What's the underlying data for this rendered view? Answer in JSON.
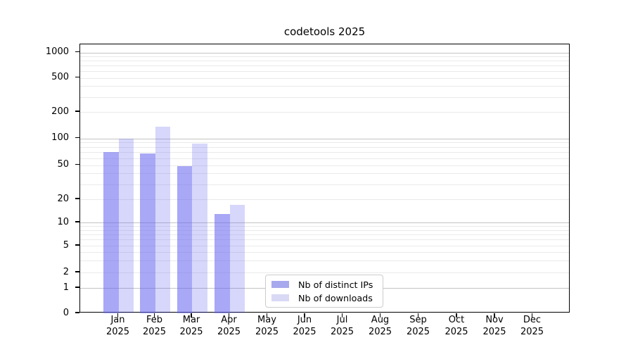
{
  "title": "codetools 2025",
  "legend": {
    "items": [
      {
        "label": "Nb of distinct IPs"
      },
      {
        "label": "Nb of downloads"
      }
    ]
  },
  "axes": {
    "y_tick_labels": [
      "0",
      "1",
      "2",
      "5",
      "10",
      "20",
      "50",
      "100",
      "200",
      "500",
      "1000"
    ],
    "x_tick_labels": [
      "Jan",
      "Feb",
      "Mar",
      "Apr",
      "May",
      "Jun",
      "Jul",
      "Aug",
      "Sep",
      "Oct",
      "Nov",
      "Dec"
    ],
    "x_year": "2025"
  },
  "chart_data": {
    "type": "bar",
    "title": "codetools 2025",
    "categories": [
      "Jan 2025",
      "Feb 2025",
      "Mar 2025",
      "Apr 2025",
      "May 2025",
      "Jun 2025",
      "Jul 2025",
      "Aug 2025",
      "Sep 2025",
      "Oct 2025",
      "Nov 2025",
      "Dec 2025"
    ],
    "series": [
      {
        "name": "Nb of distinct IPs",
        "values": [
          70,
          68,
          49,
          13,
          0,
          0,
          0,
          0,
          0,
          0,
          0,
          0
        ]
      },
      {
        "name": "Nb of downloads",
        "values": [
          100,
          135,
          87,
          17,
          0,
          0,
          0,
          0,
          0,
          0,
          0,
          0
        ]
      }
    ],
    "yscale": "symlog",
    "ylim": [
      0,
      1000
    ],
    "yticks": [
      0,
      1,
      2,
      5,
      10,
      20,
      50,
      100,
      200,
      500,
      1000
    ],
    "grid": true,
    "legend_position": "lower center inside plot"
  },
  "colors": {
    "bar_ips_fill": "rgba(102,102,240,0.57)",
    "bar_downloads_fill": "rgba(102,102,240,0.26)",
    "legend_ips": "#a8a8ee",
    "legend_downloads": "#d9d9f6",
    "grid_major": "#c3c3c3",
    "grid_minor": "#eaeaea",
    "axis": "#000000",
    "background": "#ffffff"
  }
}
